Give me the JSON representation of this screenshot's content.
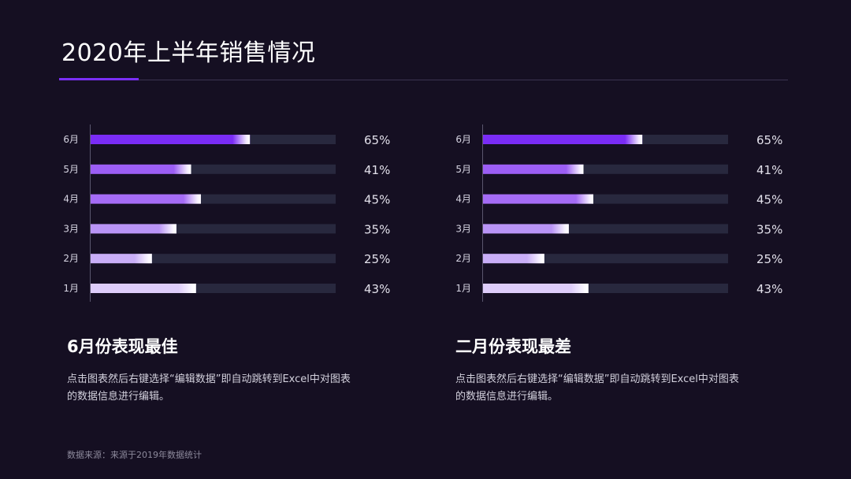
{
  "title": "2020年上半年销售情况",
  "colors": {
    "background": "#150f22",
    "accent": "#7b2ff7",
    "track": "#28283e",
    "axis": "#5a566e"
  },
  "chart_data": [
    {
      "type": "bar",
      "orientation": "horizontal",
      "categories": [
        "6月",
        "5月",
        "4月",
        "3月",
        "2月",
        "1月"
      ],
      "values": [
        65,
        41,
        45,
        35,
        25,
        43
      ],
      "value_labels": [
        "65%",
        "41%",
        "45%",
        "35%",
        "25%",
        "43%"
      ],
      "xlim": [
        0,
        100
      ],
      "grid": false,
      "bar_colors": [
        "#7a2cf6",
        "#9c5ef5",
        "#a56cf6",
        "#b994f6",
        "#c9aef7",
        "#decdfa"
      ]
    },
    {
      "type": "bar",
      "orientation": "horizontal",
      "categories": [
        "6月",
        "5月",
        "4月",
        "3月",
        "2月",
        "1月"
      ],
      "values": [
        65,
        41,
        45,
        35,
        25,
        43
      ],
      "value_labels": [
        "65%",
        "41%",
        "45%",
        "35%",
        "25%",
        "43%"
      ],
      "xlim": [
        0,
        100
      ],
      "grid": false,
      "bar_colors": [
        "#7a2cf6",
        "#9c5ef5",
        "#a56cf6",
        "#b994f6",
        "#c9aef7",
        "#decdfa"
      ]
    }
  ],
  "panels": [
    {
      "heading": "6月份表现最佳",
      "lines": [
        "点击图表然后右键选择“编辑数据”即自动跳转到Excel中对图表",
        "的数据信息进行编辑。"
      ]
    },
    {
      "heading": "二月份表现最差",
      "lines": [
        "点击图表然后右键选择“编辑数据”即自动跳转到Excel中对图表",
        "的数据信息进行编辑。"
      ]
    }
  ],
  "footer": "数据来源：来源于2019年数据统计"
}
